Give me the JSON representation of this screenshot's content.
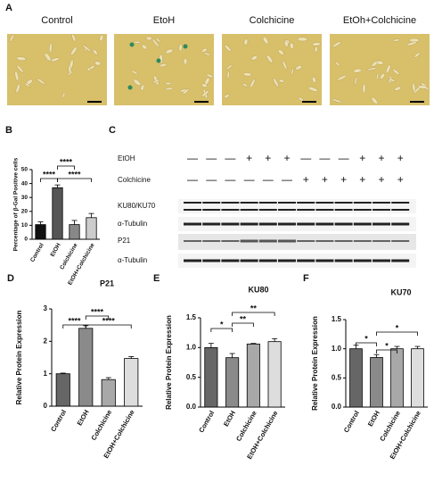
{
  "panel_labels": [
    "A",
    "B",
    "C",
    "D",
    "E",
    "F"
  ],
  "micrographs": [
    "Control",
    "EtoH",
    "Colchicine",
    "EtOh+Colchicine"
  ],
  "blot": {
    "rows": [
      {
        "label": "EtOH",
        "signs": [
          "—",
          "—",
          "—",
          "+",
          "+",
          "+",
          "—",
          "—",
          "—",
          "+",
          "+",
          "+"
        ]
      },
      {
        "label": "Colchicine",
        "signs": [
          "—",
          "—",
          "—",
          "—",
          "—",
          "—",
          "+",
          "+",
          "+",
          "+",
          "+",
          "+"
        ]
      }
    ],
    "bands": [
      "KU80/KU70",
      "α-Tubulin",
      "P21",
      "α-Tubulin"
    ]
  },
  "chart_data": [
    {
      "type": "bar",
      "ylabel": "Percentage of β-Gal Positive cells",
      "categories": [
        "Control",
        "EtOH",
        "Colchicine",
        "EtOH+Colchicine"
      ],
      "values": [
        10.5,
        37,
        10.5,
        15.5
      ],
      "errors": [
        2,
        2,
        3,
        3
      ],
      "colors": [
        "#111111",
        "#555555",
        "#888888",
        "#cccccc"
      ],
      "ylim": [
        0,
        50
      ],
      "yticks": [
        0,
        10,
        20,
        30,
        40,
        50
      ],
      "annotations": [
        {
          "label": "****",
          "between": [
            "Control",
            "EtOH"
          ]
        },
        {
          "label": "****",
          "between": [
            "EtOH",
            "Colchicine"
          ]
        },
        {
          "label": "****",
          "between": [
            "EtOH",
            "EtOH+Colchicine"
          ]
        }
      ]
    },
    {
      "type": "bar",
      "title": "P21",
      "ylabel": "Relative Protein Expression",
      "categories": [
        "Control",
        "EtOH",
        "Colchicine",
        "EtOH+Colchicine"
      ],
      "values": [
        1,
        2.4,
        0.82,
        1.47
      ],
      "errors": [
        0.02,
        0.08,
        0.06,
        0.06
      ],
      "colors": [
        "#666666",
        "#8a8a8a",
        "#a8a8a8",
        "#dddddd"
      ],
      "ylim": [
        0,
        3
      ],
      "yticks": [
        0,
        1,
        2,
        3
      ],
      "annotations": [
        {
          "label": "****",
          "between": [
            "Control",
            "EtOH"
          ]
        },
        {
          "label": "****",
          "between": [
            "EtOH",
            "Colchicine"
          ]
        },
        {
          "label": "****",
          "between": [
            "EtOH",
            "EtOH+Colchicine"
          ]
        }
      ]
    },
    {
      "type": "bar",
      "title": "KU80",
      "ylabel": "Relative Protein Expression",
      "categories": [
        "Control",
        "EtOH",
        "Colchicine",
        "EtOH+Colchicine"
      ],
      "values": [
        1,
        0.83,
        1.06,
        1.1
      ],
      "errors": [
        0.07,
        0.07,
        0.01,
        0.05
      ],
      "colors": [
        "#666666",
        "#8a8a8a",
        "#a8a8a8",
        "#dddddd"
      ],
      "ylim": [
        0,
        1.5
      ],
      "yticks": [
        {
          "value": 0,
          "label": "0.0"
        },
        0.5,
        {
          "value": 1,
          "label": "1.0"
        },
        1.5
      ],
      "annotations": [
        {
          "label": "*",
          "between": [
            "Control",
            "EtOH"
          ]
        },
        {
          "label": "**",
          "between": [
            "EtOH",
            "Colchicine"
          ]
        },
        {
          "label": "**",
          "between": [
            "EtOH",
            "EtOH+Colchicine"
          ]
        }
      ]
    },
    {
      "type": "bar",
      "title": "KU70",
      "ylabel": "Relative Protein Expression",
      "categories": [
        "Control",
        "EtOH",
        "Colchicine",
        "EtOH+Colchicine"
      ],
      "values": [
        1,
        0.85,
        1,
        1
      ],
      "errors": [
        0.06,
        0.05,
        0.04,
        0.04
      ],
      "colors": [
        "#666666",
        "#8a8a8a",
        "#a8a8a8",
        "#dddddd"
      ],
      "ylim": [
        0,
        1.5
      ],
      "yticks": [
        {
          "value": 0,
          "label": "0.0"
        },
        0.5,
        {
          "value": 1,
          "label": "1.0"
        },
        1.5
      ],
      "annotations": [
        {
          "label": "*",
          "between": [
            "Control",
            "EtOH"
          ]
        },
        {
          "label": "*",
          "between": [
            "EtOH",
            "Colchicine"
          ]
        },
        {
          "label": "*",
          "between": [
            "EtOH",
            "EtOH+Colchicine"
          ]
        }
      ]
    }
  ]
}
